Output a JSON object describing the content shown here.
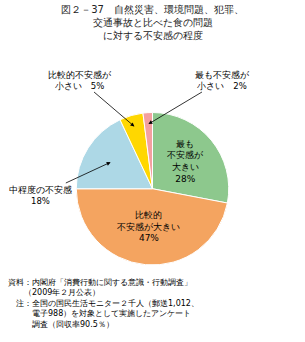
{
  "chart_data": {
    "type": "pie",
    "title": "図２－37　自然災害、環境問題、犯罪、\n交通事故と比べた食の問題\nに対する不安感の程度",
    "values": [
      28,
      47,
      18,
      5,
      2
    ],
    "value_labels": [
      "最も\n不安感が\n大きい\n28%",
      "比較的\n不安感が大きい\n47%",
      "中程度の不安感\n18%",
      "比較的不安感が\n小さい　5%",
      "最も不安感が\n小さい　2%"
    ],
    "colors": [
      "#8DC88D",
      "#F4A460",
      "#ADD8E6",
      "#FFD700",
      "#F4A0A0"
    ],
    "annotations": [
      "資料：内閣府「消費行動に関する意識・行動調査」\n　　（2009年２月公表）\n　注：全国の国民生活モニター２千人（郵送1,012、\n　　　電子988）を対象として実施したアンケート\n　　　調査（回収率90.5％）"
    ]
  }
}
